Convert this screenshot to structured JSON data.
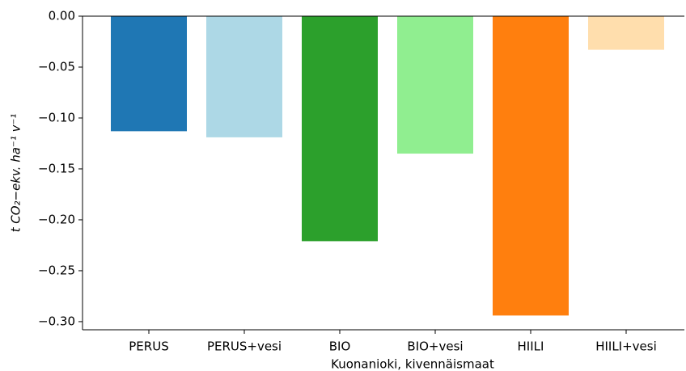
{
  "chart_data": {
    "type": "bar",
    "x_label": "Kuonanioki, kivennäismaat",
    "y_label": "t CO₂−ekv. ha⁻¹ v⁻¹",
    "categories": [
      "PERUS",
      "PERUS+vesi",
      "BIO",
      "BIO+vesi",
      "HIILI",
      "HIILI+vesi"
    ],
    "values": [
      -0.113,
      -0.119,
      -0.221,
      -0.135,
      -0.294,
      -0.033
    ],
    "colors": [
      "#1f77b4",
      "#add8e6",
      "#2ca02c",
      "#90ee90",
      "#ff7f0e",
      "#ffdead"
    ],
    "ylim": [
      -0.308,
      0
    ],
    "yticks": [
      {
        "value": 0,
        "label": "0.00"
      },
      {
        "value": -0.05,
        "label": "−0.05"
      },
      {
        "value": -0.1,
        "label": "−0.10"
      },
      {
        "value": -0.15,
        "label": "−0.15"
      },
      {
        "value": -0.2,
        "label": "−0.20"
      },
      {
        "value": -0.25,
        "label": "−0.25"
      },
      {
        "value": -0.3,
        "label": "−0.30"
      }
    ]
  }
}
